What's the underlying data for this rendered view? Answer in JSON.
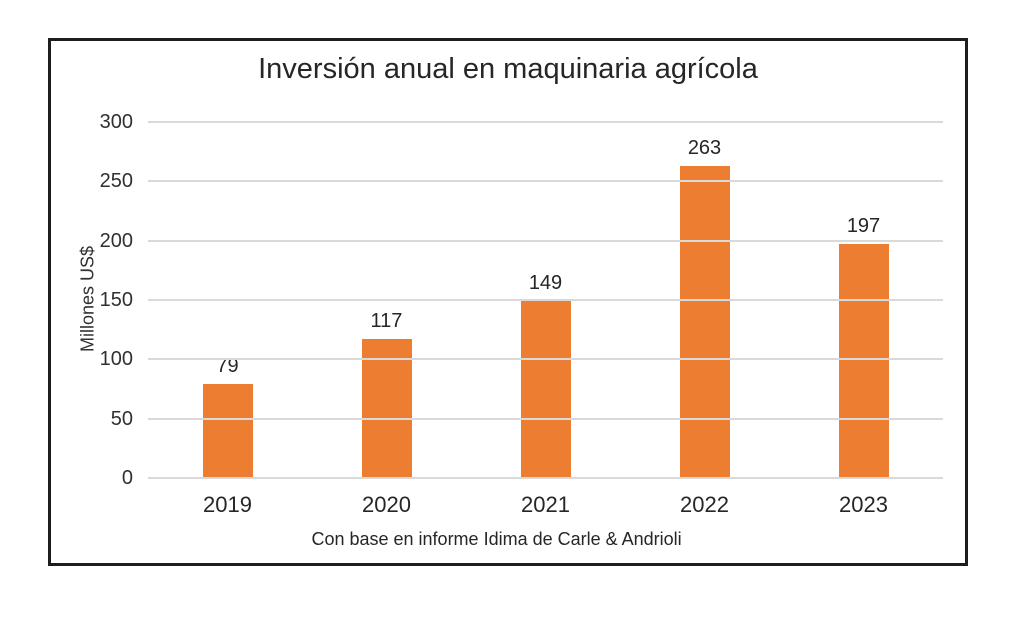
{
  "figure": {
    "background_color": "#ffffff",
    "frame_border_color": "#1e1e1e"
  },
  "chart_data": {
    "type": "bar",
    "title": "Inversión anual en maquinaria agrícola",
    "categories": [
      "2019",
      "2020",
      "2021",
      "2022",
      "2023"
    ],
    "values": [
      79,
      117,
      149,
      263,
      197
    ],
    "ylabel": "Millones US$",
    "xlabel": "Con base en informe Idima de Carle & Andrioli",
    "ylim": [
      0,
      300
    ],
    "yticks": [
      0,
      50,
      100,
      150,
      200,
      250,
      300
    ],
    "grid": true,
    "legend": false,
    "data_labels": true,
    "bar_color": "#ED7D31",
    "gridline_color": "#D9D9D9",
    "text_color": "#262626"
  }
}
